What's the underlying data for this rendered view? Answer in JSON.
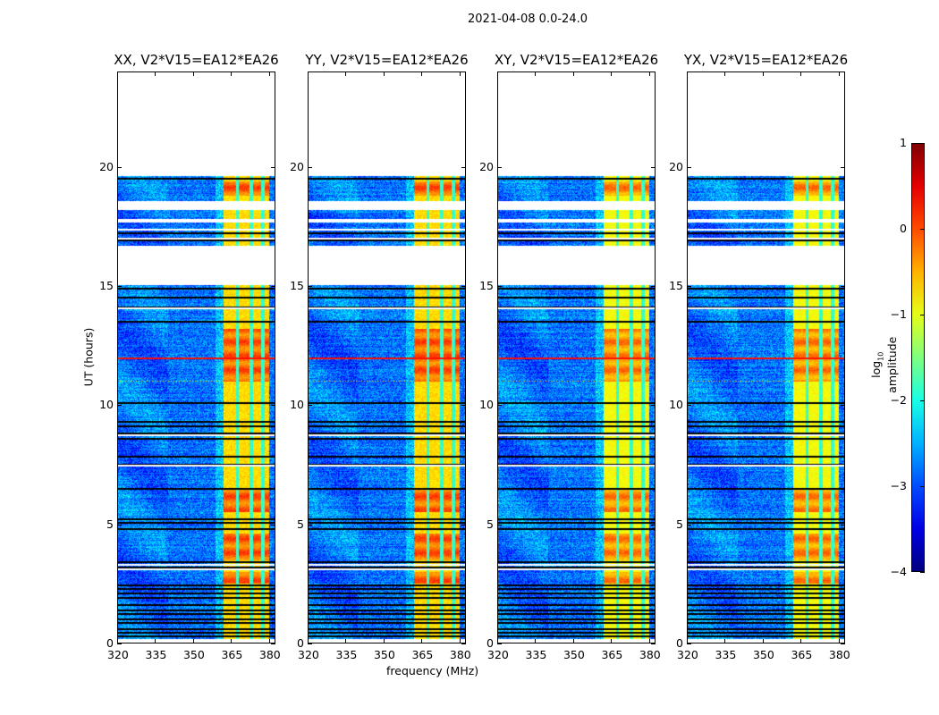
{
  "chart_data": {
    "type": "heatmap",
    "title": "2021-04-08 0.0-24.0",
    "xlabel": "frequency (MHz)",
    "ylabel": "UT (hours)",
    "xlim": [
      320,
      382.5
    ],
    "ylim": [
      0,
      24
    ],
    "xticks": [
      "320",
      "335",
      "350",
      "365",
      "380"
    ],
    "xtick_values": [
      320,
      335,
      350,
      365,
      380
    ],
    "yticks": [
      "0",
      "5",
      "10",
      "15",
      "20"
    ],
    "ytick_values": [
      0,
      5,
      10,
      15,
      20
    ],
    "panels": [
      {
        "title": "XX, V2*V15=EA12*EA26",
        "band_level": -0.7
      },
      {
        "title": "YY, V2*V15=EA12*EA26",
        "band_level": -0.7
      },
      {
        "title": "XY, V2*V15=EA12*EA26",
        "band_level": -0.9
      },
      {
        "title": "YX, V2*V15=EA12*EA26",
        "band_level": -0.9
      }
    ],
    "colorbar": {
      "label": "log10 amplitude",
      "label_main": "log",
      "label_sub": "10",
      "label_rest": " amplitude",
      "range": [
        -4,
        1
      ],
      "ticks": [
        "1",
        "0",
        "−1",
        "−2",
        "−3",
        "−4"
      ],
      "tick_values": [
        1,
        0,
        -1,
        -2,
        -3,
        -4
      ],
      "colormap": "jet"
    },
    "time_segments_hours": [
      [
        0.2,
        2.4
      ],
      [
        2.4,
        5.2
      ],
      [
        5.2,
        7.9
      ],
      [
        7.9,
        15.05
      ],
      [
        16.7,
        17.65
      ],
      [
        17.8,
        18.2
      ],
      [
        18.55,
        19.6
      ]
    ],
    "flagged_rows_hours": [
      0.3,
      0.45,
      0.6,
      0.85,
      1.0,
      1.25,
      1.4,
      1.6,
      1.9,
      2.1,
      2.3,
      2.45,
      3.2,
      3.4,
      4.8,
      5.05,
      5.2,
      6.5,
      7.5,
      7.85,
      8.6,
      8.8,
      9.1,
      9.3,
      10.1,
      13.5,
      14.1,
      14.5,
      14.9,
      16.9,
      17.2,
      19.5
    ],
    "white_gap_hours": [
      3.1,
      3.3,
      7.45,
      8.75,
      14.05,
      17.0,
      17.35,
      18.5
    ],
    "band_MHz": [
      362,
      380
    ],
    "band_channel_edges_MHz": [
      367.5,
      373,
      377.5
    ],
    "bright_periods_hours": [
      [
        2.5,
        3.0
      ],
      [
        3.5,
        4.6
      ],
      [
        5.5,
        6.5
      ],
      [
        11.0,
        13.2
      ],
      [
        18.8,
        19.4
      ]
    ],
    "background_level": -2.8
  }
}
